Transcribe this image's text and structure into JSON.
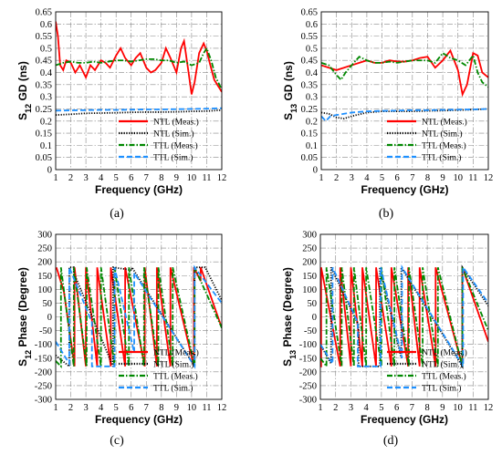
{
  "chart_data": [
    {
      "panel": "(a)",
      "type": "line",
      "ylabel": {
        "main": "S",
        "sub": "12",
        "rest": " GD (ns)"
      },
      "xlabel": "Frequency (GHz)",
      "xlim": [
        1,
        12
      ],
      "ylim": [
        0,
        0.65
      ],
      "xticks": [
        1,
        2,
        3,
        4,
        5,
        6,
        7,
        8,
        9,
        10,
        11,
        12
      ],
      "yticks": [
        0,
        0.05,
        0.1,
        0.15,
        0.2,
        0.25,
        0.3,
        0.35,
        0.4,
        0.45,
        0.5,
        0.55,
        0.6,
        0.65
      ],
      "ytick_labels": [
        "0",
        "0.05",
        "0.1",
        "0.15",
        "0.2",
        "0.25",
        "0.3",
        "0.35",
        "0.4",
        "0.45",
        "0.5",
        "0.55",
        "0.6",
        "0.65"
      ],
      "grid": true,
      "legend_position": "bottom-right",
      "series": [
        {
          "name": "NTL (Meas.)",
          "color": "#ff0000",
          "style": "solid",
          "x": [
            1,
            1.15,
            1.3,
            1.5,
            1.7,
            2,
            2.3,
            2.6,
            3,
            3.3,
            3.6,
            4,
            4.3,
            4.6,
            5,
            5.3,
            5.6,
            6,
            6.3,
            6.6,
            7,
            7.3,
            7.6,
            8,
            8.3,
            8.6,
            9,
            9.3,
            9.5,
            9.8,
            10,
            10.2,
            10.5,
            10.8,
            11,
            11.2,
            11.5,
            11.8,
            12
          ],
          "y": [
            0.61,
            0.55,
            0.43,
            0.41,
            0.45,
            0.44,
            0.4,
            0.43,
            0.38,
            0.43,
            0.41,
            0.45,
            0.44,
            0.42,
            0.47,
            0.5,
            0.46,
            0.43,
            0.46,
            0.48,
            0.42,
            0.4,
            0.41,
            0.44,
            0.5,
            0.46,
            0.4,
            0.5,
            0.53,
            0.4,
            0.31,
            0.36,
            0.48,
            0.52,
            0.49,
            0.44,
            0.37,
            0.34,
            0.32
          ]
        },
        {
          "name": "NTL (Sim.)",
          "color": "#000000",
          "style": "dotted",
          "x": [
            1,
            2,
            3,
            4,
            5,
            6,
            7,
            8,
            9,
            10,
            11,
            12
          ],
          "y": [
            0.225,
            0.228,
            0.232,
            0.233,
            0.234,
            0.236,
            0.237,
            0.237,
            0.238,
            0.24,
            0.241,
            0.245
          ]
        },
        {
          "name": "TTL (Meas.)",
          "color": "#008800",
          "style": "dashdot",
          "x": [
            1,
            1.5,
            2,
            2.5,
            3,
            3.5,
            4,
            4.5,
            5,
            5.5,
            6,
            6.5,
            7,
            7.5,
            8,
            8.5,
            9,
            9.5,
            10,
            10.5,
            10.8,
            11,
            11.3,
            11.6,
            12
          ],
          "y": [
            0.43,
            0.44,
            0.445,
            0.44,
            0.44,
            0.445,
            0.44,
            0.445,
            0.45,
            0.45,
            0.445,
            0.45,
            0.455,
            0.455,
            0.45,
            0.45,
            0.44,
            0.445,
            0.43,
            0.44,
            0.48,
            0.5,
            0.45,
            0.38,
            0.33
          ]
        },
        {
          "name": "TTL (Sim.)",
          "color": "#1e90ff",
          "style": "dashed",
          "x": [
            1,
            2,
            3,
            4,
            5,
            6,
            7,
            8,
            9,
            10,
            11,
            12
          ],
          "y": [
            0.243,
            0.244,
            0.245,
            0.246,
            0.246,
            0.247,
            0.248,
            0.248,
            0.249,
            0.25,
            0.251,
            0.253
          ]
        }
      ]
    },
    {
      "panel": "(b)",
      "type": "line",
      "ylabel": {
        "main": "S",
        "sub": "13",
        "rest": " GD (ns)"
      },
      "xlabel": "Frequency (GHz)",
      "xlim": [
        1,
        12
      ],
      "ylim": [
        0,
        0.65
      ],
      "xticks": [
        1,
        2,
        3,
        4,
        5,
        6,
        7,
        8,
        9,
        10,
        11,
        12
      ],
      "yticks": [
        0,
        0.05,
        0.1,
        0.15,
        0.2,
        0.25,
        0.3,
        0.35,
        0.4,
        0.45,
        0.5,
        0.55,
        0.6,
        0.65
      ],
      "ytick_labels": [
        "0",
        "0.05",
        "0.1",
        "0.15",
        "0.2",
        "0.25",
        "0.3",
        "0.35",
        "0.4",
        "0.45",
        "0.5",
        "0.55",
        "0.6",
        "0.65"
      ],
      "grid": true,
      "legend_position": "bottom-right",
      "series": [
        {
          "name": "NTL (Meas.)",
          "color": "#ff0000",
          "style": "solid",
          "x": [
            1,
            1.5,
            2,
            2.5,
            3,
            3.5,
            4,
            4.5,
            5,
            5.5,
            6,
            6.5,
            7,
            7.5,
            8,
            8.5,
            9,
            9.5,
            10,
            10.3,
            10.6,
            11,
            11.3,
            11.6,
            12
          ],
          "y": [
            0.43,
            0.42,
            0.41,
            0.42,
            0.43,
            0.44,
            0.45,
            0.44,
            0.44,
            0.45,
            0.445,
            0.445,
            0.45,
            0.46,
            0.465,
            0.42,
            0.45,
            0.49,
            0.41,
            0.31,
            0.35,
            0.48,
            0.47,
            0.4,
            0.38
          ]
        },
        {
          "name": "NTL (Sim.)",
          "color": "#000000",
          "style": "dotted",
          "x": [
            1,
            1.5,
            2,
            2.5,
            3,
            4,
            5,
            6,
            7,
            8,
            9,
            10,
            11,
            12
          ],
          "y": [
            0.235,
            0.23,
            0.215,
            0.21,
            0.22,
            0.235,
            0.24,
            0.24,
            0.24,
            0.242,
            0.243,
            0.245,
            0.247,
            0.25
          ]
        },
        {
          "name": "TTL (Meas.)",
          "color": "#008800",
          "style": "dashdot",
          "x": [
            1,
            1.5,
            2,
            2.3,
            2.6,
            3,
            3.5,
            4,
            4.5,
            5,
            5.5,
            6,
            6.5,
            7,
            7.5,
            8,
            8.5,
            9,
            9.5,
            10,
            10.5,
            11,
            11.3,
            11.6,
            12
          ],
          "y": [
            0.44,
            0.43,
            0.39,
            0.37,
            0.4,
            0.43,
            0.465,
            0.45,
            0.44,
            0.44,
            0.445,
            0.44,
            0.445,
            0.45,
            0.45,
            0.45,
            0.44,
            0.48,
            0.46,
            0.45,
            0.43,
            0.47,
            0.4,
            0.36,
            0.34
          ]
        },
        {
          "name": "TTL (Sim.)",
          "color": "#1e90ff",
          "style": "dashed",
          "x": [
            1,
            1.3,
            1.6,
            2,
            2.5,
            3,
            4,
            5,
            6,
            7,
            8,
            9,
            10,
            11,
            12
          ],
          "y": [
            0.22,
            0.2,
            0.22,
            0.225,
            0.23,
            0.235,
            0.24,
            0.242,
            0.243,
            0.245,
            0.245,
            0.246,
            0.247,
            0.248,
            0.25
          ]
        }
      ]
    },
    {
      "panel": "(c)",
      "type": "line",
      "ylabel": {
        "main": "S",
        "sub": "12",
        "rest": " Phase (Degree)"
      },
      "xlabel": "Frequency (GHz)",
      "xlim": [
        1,
        12
      ],
      "ylim": [
        -300,
        300
      ],
      "xticks": [
        1,
        2,
        3,
        4,
        5,
        6,
        7,
        8,
        9,
        10,
        11,
        12
      ],
      "yticks": [
        -300,
        -250,
        -200,
        -150,
        -100,
        -50,
        0,
        50,
        100,
        150,
        200,
        250,
        300
      ],
      "ytick_labels": [
        "-300",
        "-250",
        "-200",
        "-150",
        "-100",
        "-50",
        "0",
        "50",
        "100",
        "150",
        "200",
        "250",
        "300"
      ],
      "grid": true,
      "legend_position": "bottom-right",
      "series": [
        {
          "name": "NTL (Meas.)",
          "color": "#ff0000",
          "style": "solid",
          "x": [
            1.05,
            1.55,
            2.25,
            2.25,
            3.0,
            3.0,
            3.75,
            3.75,
            4.65,
            4.65,
            5.6,
            5.6,
            6.9,
            6.9,
            7.7,
            7.7,
            8.6,
            8.6,
            10.15,
            10.15,
            10.6,
            10.6,
            12
          ],
          "y": [
            180,
            90,
            -180,
            180,
            -180,
            180,
            -180,
            180,
            -180,
            180,
            -180,
            180,
            -180,
            180,
            -180,
            180,
            -180,
            180,
            -180,
            180,
            130,
            180,
            -40
          ]
        },
        {
          "name": "NTL (Sim.)",
          "color": "#000000",
          "style": "dotted",
          "x": [
            1,
            1.9,
            1.9,
            2.2,
            2.2,
            4.8,
            4.8,
            6.05,
            6.05,
            10.2,
            10.2,
            10.9,
            12
          ],
          "y": [
            -140,
            -180,
            180,
            180,
            160,
            -180,
            180,
            170,
            180,
            -180,
            180,
            180,
            60
          ]
        },
        {
          "name": "TTL (Meas.)",
          "color": "#008800",
          "style": "dashdot",
          "x": [
            1,
            1.35,
            1.35,
            2.2,
            2.2,
            3.05,
            3.05,
            4.0,
            4.0,
            4.9,
            4.9,
            5.85,
            5.85,
            6.85,
            6.85,
            7.8,
            7.8,
            8.75,
            8.75,
            10.2,
            10.2,
            12
          ],
          "y": [
            -160,
            -180,
            180,
            -180,
            180,
            -180,
            180,
            -180,
            180,
            -180,
            180,
            -180,
            180,
            -180,
            180,
            -180,
            180,
            -180,
            180,
            -180,
            180,
            -40
          ]
        },
        {
          "name": "TTL (Sim.)",
          "color": "#1e90ff",
          "style": "dashed",
          "x": [
            1,
            1.9,
            1.9,
            3.4,
            3.4,
            4.9,
            4.9,
            6.2,
            6.2,
            10.2,
            10.2,
            12
          ],
          "y": [
            -90,
            -170,
            180,
            -20,
            -180,
            -180,
            180,
            -130,
            160,
            -180,
            180,
            50
          ]
        }
      ]
    },
    {
      "panel": "(d)",
      "type": "line",
      "ylabel": {
        "main": "S",
        "sub": "13",
        "rest": " Phase (Degree)"
      },
      "xlabel": "Frequency (GHz)",
      "xlim": [
        1,
        12
      ],
      "ylim": [
        -300,
        300
      ],
      "xticks": [
        1,
        2,
        3,
        4,
        5,
        6,
        7,
        8,
        9,
        10,
        11,
        12
      ],
      "yticks": [
        -300,
        -250,
        -200,
        -150,
        -100,
        -50,
        0,
        50,
        100,
        150,
        200,
        250,
        300
      ],
      "ytick_labels": [
        "-300",
        "-250",
        "-200",
        "-150",
        "-100",
        "-50",
        "0",
        "50",
        "100",
        "150",
        "200",
        "250",
        "300"
      ],
      "grid": true,
      "legend_position": "bottom-right",
      "series": [
        {
          "name": "NTL (Meas.)",
          "color": "#ff0000",
          "style": "solid",
          "x": [
            1,
            1.05,
            1.05,
            2.3,
            2.3,
            3.0,
            3.0,
            3.75,
            3.75,
            4.65,
            4.65,
            5.65,
            5.65,
            6.75,
            6.75,
            7.5,
            7.5,
            8.55,
            8.55,
            10.3,
            10.3,
            12
          ],
          "y": [
            -180,
            -180,
            180,
            -180,
            180,
            -180,
            180,
            -180,
            180,
            -180,
            180,
            -180,
            180,
            -180,
            180,
            -180,
            180,
            -180,
            180,
            -180,
            180,
            -90
          ]
        },
        {
          "name": "NTL (Sim.)",
          "color": "#000000",
          "style": "dotted",
          "x": [
            1,
            1.7,
            1.7,
            3.5,
            3.5,
            4.9,
            4.9,
            6.3,
            6.3,
            10.3,
            10.3,
            12
          ],
          "y": [
            -100,
            -170,
            180,
            -30,
            -180,
            -180,
            180,
            -150,
            180,
            -180,
            180,
            40
          ]
        },
        {
          "name": "TTL (Meas.)",
          "color": "#008800",
          "style": "dashdot",
          "x": [
            1,
            1.4,
            1.4,
            2.4,
            2.4,
            3.2,
            3.2,
            4.0,
            4.0,
            5.0,
            5.0,
            5.85,
            5.85,
            6.8,
            6.8,
            7.7,
            7.7,
            8.7,
            8.7,
            10.3,
            10.3,
            12
          ],
          "y": [
            -150,
            -180,
            180,
            -180,
            180,
            -180,
            180,
            -180,
            180,
            -180,
            180,
            -180,
            180,
            -180,
            180,
            -180,
            180,
            -180,
            180,
            -180,
            180,
            -50
          ]
        },
        {
          "name": "TTL (Sim.)",
          "color": "#1e90ff",
          "style": "dashed",
          "x": [
            1,
            1.8,
            1.8,
            3.45,
            3.45,
            4.95,
            4.95,
            6.35,
            6.35,
            10.35,
            10.35,
            12
          ],
          "y": [
            -100,
            -170,
            180,
            -20,
            -180,
            -180,
            180,
            -150,
            180,
            -180,
            180,
            50
          ]
        }
      ]
    }
  ]
}
